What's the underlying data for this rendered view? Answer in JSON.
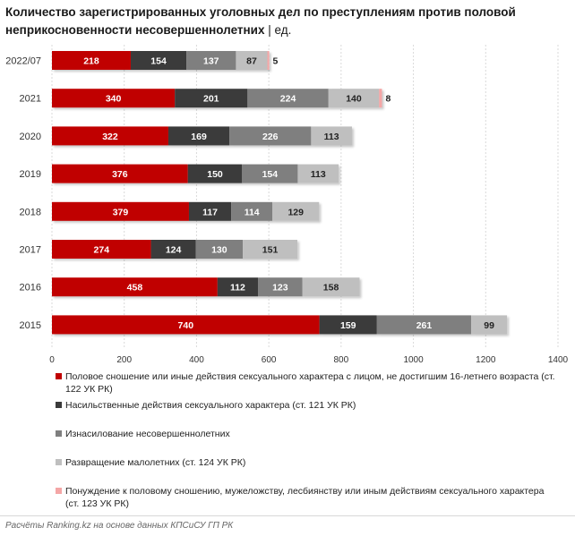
{
  "title": {
    "main": "Количество зарегистрированных уголовных дел по преступлениям против половой неприкосновенности несовершеннолетних",
    "unit": " | ед."
  },
  "chart_data": {
    "type": "bar",
    "orientation": "horizontal",
    "stacked": true,
    "categories": [
      "2022/07",
      "2021",
      "2020",
      "2019",
      "2018",
      "2017",
      "2016",
      "2015"
    ],
    "series": [
      {
        "name": "Половое сношение или иные действия сексуального характера с лицом, не достигшим 16-летнего возраста (ст. 122 УК РК)",
        "color": "#c00000",
        "values": [
          218,
          340,
          322,
          376,
          379,
          274,
          458,
          740
        ]
      },
      {
        "name": "Насильственные действия сексуального характера (ст. 121 УК РК)",
        "color": "#3a3a3a",
        "values": [
          154,
          201,
          169,
          150,
          117,
          124,
          112,
          159
        ]
      },
      {
        "name": "Изнасилование несовершеннолетних",
        "color": "#7f7f7f",
        "values": [
          137,
          224,
          226,
          154,
          114,
          130,
          123,
          261
        ]
      },
      {
        "name": "Развращение малолетних (ст. 124 УК РК)",
        "color": "#bfbfbf",
        "values": [
          87,
          140,
          113,
          113,
          129,
          151,
          158,
          99
        ]
      },
      {
        "name": "Понуждение к половому сношению, мужеложству, лесбиянству или иным действиям сексуального характера (ст. 123 УК РК)",
        "color": "#f4a6a6",
        "values": [
          5,
          8,
          null,
          null,
          null,
          null,
          null,
          null
        ]
      }
    ],
    "xlim": [
      0,
      1400
    ],
    "xticks": [
      0,
      200,
      400,
      600,
      800,
      1000,
      1200,
      1400
    ],
    "grid": true,
    "legend_position": "bottom"
  },
  "footer": "Расчёты Ranking.kz на основе данных КПСиСУ ГП РК"
}
